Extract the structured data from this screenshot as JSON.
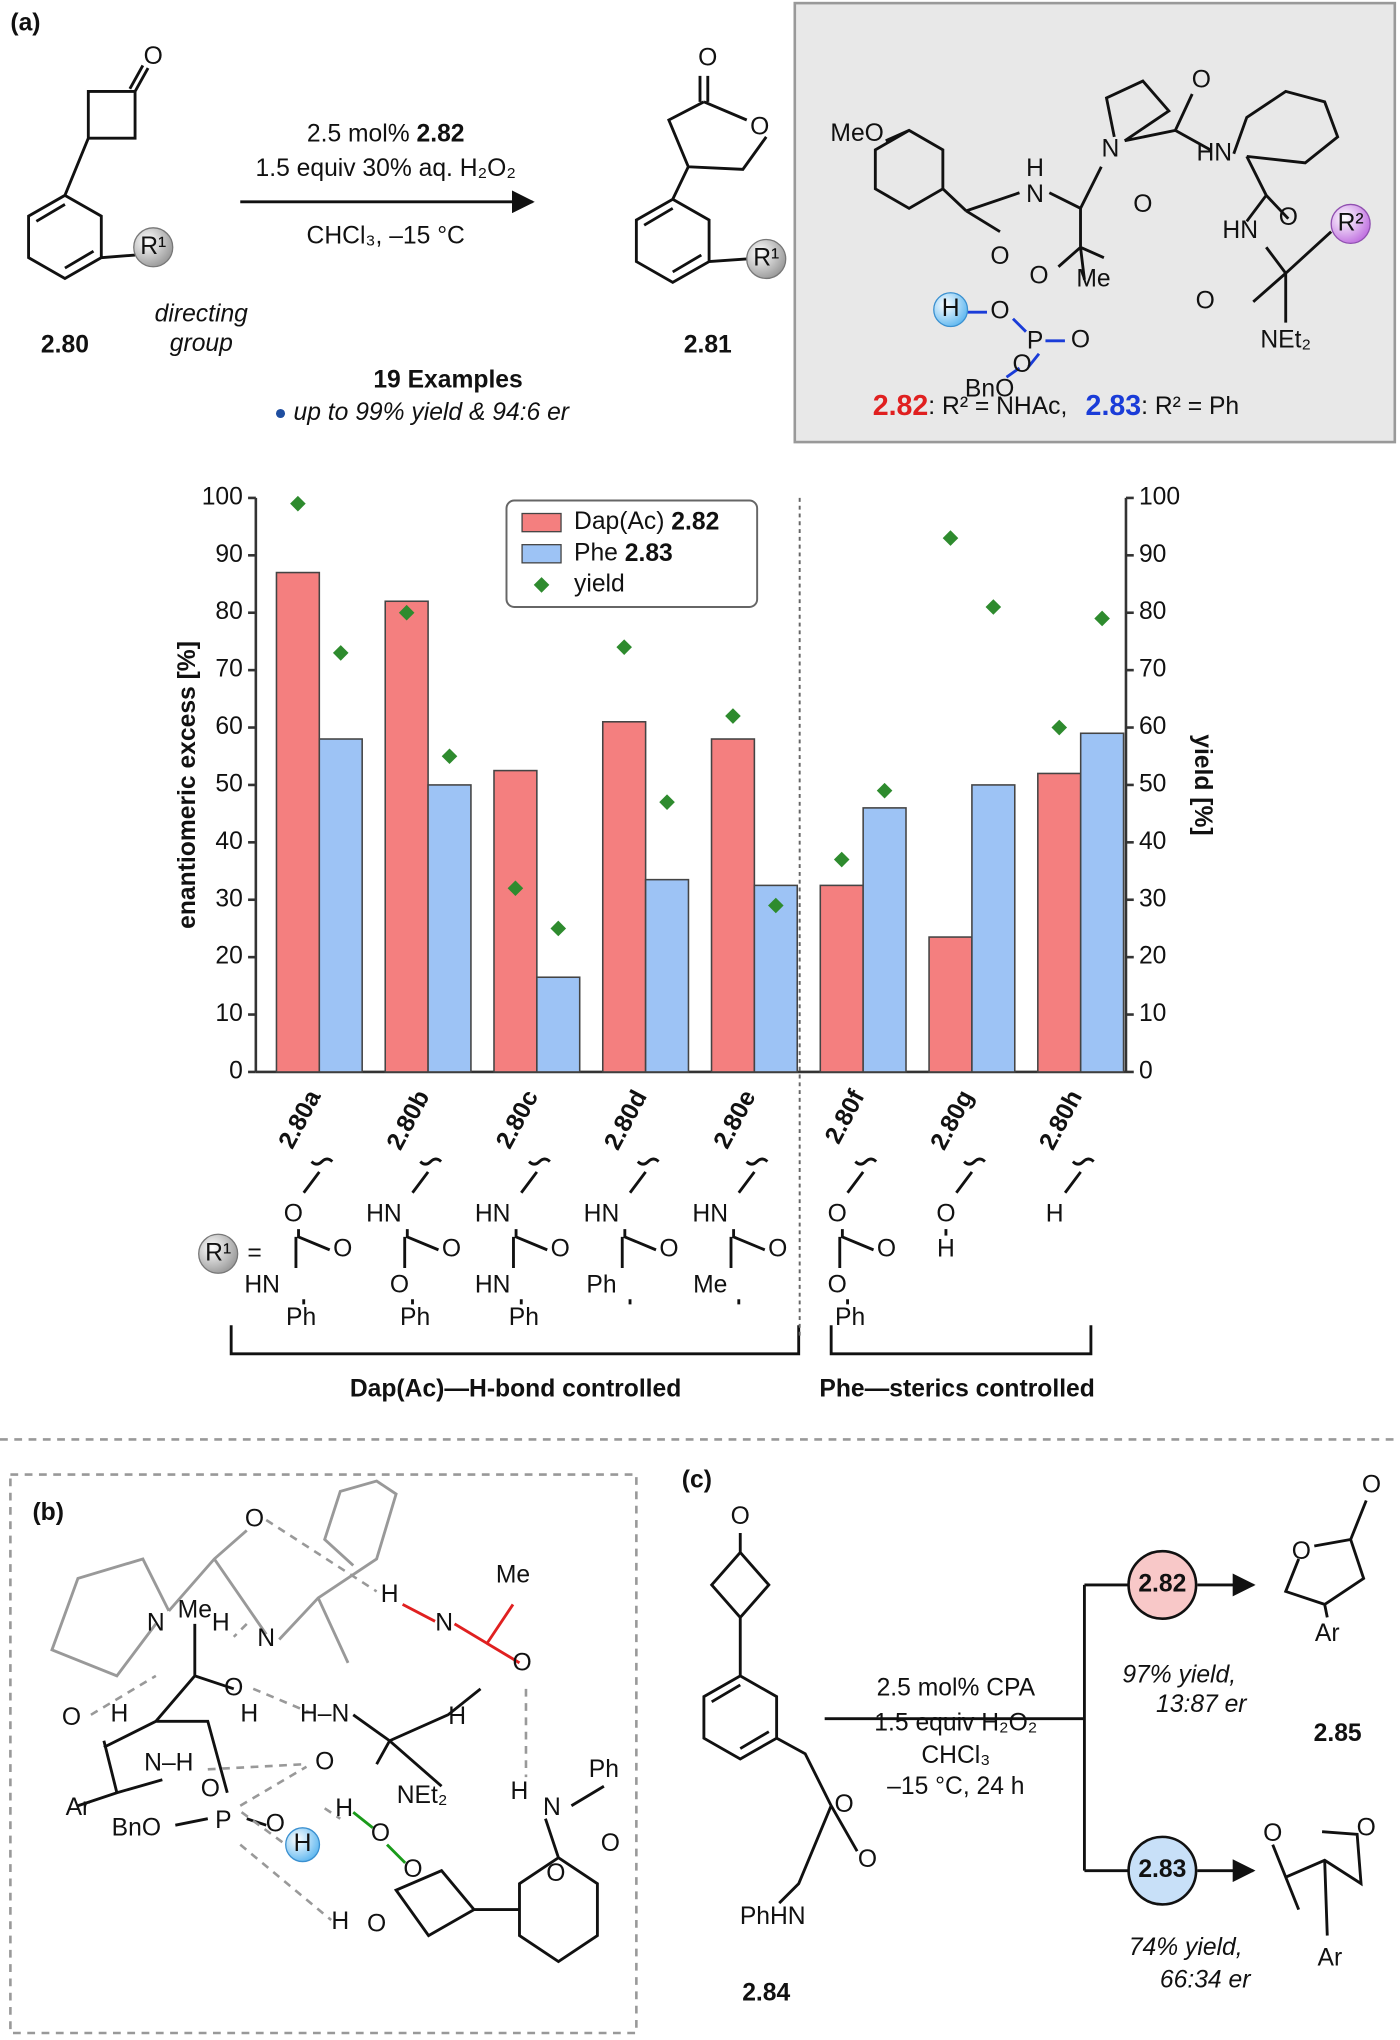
{
  "panel_a": {
    "label": "(a)",
    "starting_material": {
      "id": "2.80",
      "labels": [
        "O",
        "R¹"
      ],
      "note": [
        "directing",
        "group"
      ]
    },
    "conditions": {
      "catalyst_loading": "2.5 mol%",
      "catalyst": "2.82",
      "oxidant": "1.5 equiv 30% aq. H₂O₂",
      "solvent": "CHCl₃, –15 °C"
    },
    "product": {
      "id": "2.81",
      "labels": [
        "O",
        "O",
        "R¹"
      ]
    },
    "scope": {
      "count": "19 Examples",
      "highlight": "up to 99% yield & 94:6 er"
    },
    "catalyst_box": {
      "labels": [
        "MeO",
        "O",
        "H",
        "N",
        "N",
        "O",
        "O",
        "HN",
        "O",
        "HN",
        "R²",
        "O",
        "NEt₂",
        "O",
        "Me",
        "H",
        "O",
        "P",
        "O",
        "BnO",
        "O"
      ],
      "caption": [
        "2.82",
        ": R² = NHAc,",
        "2.83",
        ": R² = Ph"
      ]
    }
  },
  "chart_data": {
    "type": "bar",
    "categories": [
      "2.80a",
      "2.80b",
      "2.80c",
      "2.80d",
      "2.80e",
      "2.80f",
      "2.80g",
      "2.80h"
    ],
    "series": [
      {
        "name": "Dap(Ac) 2.82",
        "color": "#f47f7f",
        "values": [
          87,
          82,
          52.5,
          61,
          58,
          32.5,
          23.5,
          52
        ]
      },
      {
        "name": "Phe 2.83",
        "color": "#9dc3f5",
        "values": [
          58,
          50,
          16.5,
          33.5,
          32.5,
          46,
          50,
          59
        ]
      },
      {
        "name": "yield",
        "type": "scatter",
        "axis": "y2",
        "color": "#2e8b2e",
        "values": [
          [
            99,
            73
          ],
          [
            80,
            55
          ],
          [
            32,
            25
          ],
          [
            74,
            47
          ],
          [
            62,
            29
          ],
          [
            37,
            49
          ],
          [
            93,
            81
          ],
          [
            60,
            79
          ]
        ]
      }
    ],
    "ylabel": "enantiomeric excess [%]",
    "y2label": "yield [%]",
    "ylim": [
      0,
      100
    ],
    "yticks": [
      0,
      10,
      20,
      30,
      40,
      50,
      60,
      70,
      80,
      90,
      100
    ],
    "y2lim": [
      0,
      100
    ],
    "y2ticks": [
      0,
      10,
      20,
      30,
      40,
      50,
      60,
      70,
      80,
      90,
      100
    ],
    "legend": "top-center"
  },
  "r1_legend": {
    "symbol": "R¹",
    "equals": "=",
    "groups": [
      [
        "O",
        "O",
        "HN",
        "Ph"
      ],
      [
        "HN",
        "O",
        "O",
        "Ph"
      ],
      [
        "HN",
        "O",
        "HN",
        "Ph"
      ],
      [
        "HN",
        "O",
        "Ph"
      ],
      [
        "HN",
        "O",
        "Me"
      ],
      [
        "O",
        "O",
        "O",
        "Ph"
      ],
      [
        "O",
        "H"
      ],
      [
        "H"
      ]
    ],
    "brackets": [
      "Dap(Ac)—H-bond controlled",
      "Phe—sterics controlled"
    ]
  },
  "panel_b": {
    "label": "(b)",
    "labels": [
      "O",
      "Me",
      "H",
      "N",
      "O",
      "Me",
      "N",
      "H",
      "N",
      "O",
      "H",
      "H",
      "H–N",
      "H",
      "O",
      "N–H",
      "O",
      "NEt₂",
      "H",
      "N",
      "Ph",
      "Ar",
      "BnO",
      "P",
      "O",
      "O",
      "H",
      "H",
      "O",
      "O",
      "H",
      "O",
      "O",
      "O"
    ]
  },
  "panel_c": {
    "label": "(c)",
    "substrate": {
      "id": "2.84",
      "labels": [
        "O",
        "O",
        "O",
        "PhHN"
      ]
    },
    "conditions": [
      "2.5 mol% CPA",
      "1.5 equiv H₂O₂",
      "CHCl₃",
      "–15 °C, 24 h"
    ],
    "catalysts": [
      "2.82",
      "2.83"
    ],
    "outcomes": [
      [
        "97% yield,",
        "13:87 er"
      ],
      [
        "74% yield,",
        "66:34 er"
      ]
    ],
    "product": {
      "id": "2.85",
      "labels": [
        "O",
        "O",
        "Ar",
        "O",
        "O",
        "Ar"
      ]
    }
  }
}
